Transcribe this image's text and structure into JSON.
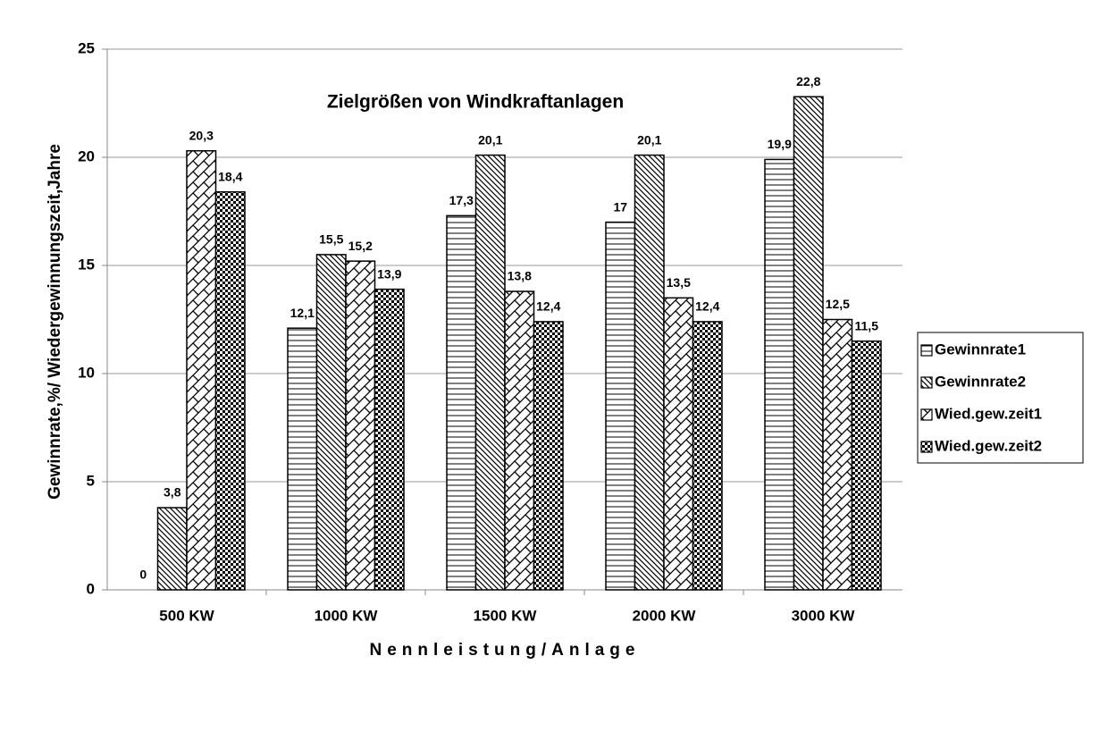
{
  "chart_data": {
    "type": "bar",
    "title": "Zielgrößen von Windkraftanlagen",
    "x_label": "Nennleistung/Anlage",
    "y_label": "Gewinnrate,%/ Wiedergewinnungszeit,Jahre",
    "categories": [
      "500 KW",
      "1000 KW",
      "1500 KW",
      "2000 KW",
      "3000 KW"
    ],
    "series": [
      {
        "name": "Gewinnrate1",
        "color": "#000000",
        "values": [
          0,
          12.1,
          17.3,
          17,
          19.9
        ],
        "value_labels": [
          "0",
          "12,1",
          "17,3",
          "17",
          "19,9"
        ]
      },
      {
        "name": "Gewinnrate2",
        "color": "#000000",
        "values": [
          3.8,
          15.5,
          20.1,
          20.1,
          22.8
        ],
        "value_labels": [
          "3,8",
          "15,5",
          "20,1",
          "20,1",
          "22,8"
        ]
      },
      {
        "name": "Wied.gew.zeit1",
        "color": "#000000",
        "values": [
          20.3,
          15.2,
          13.8,
          13.5,
          12.5
        ],
        "value_labels": [
          "20,3",
          "15,2",
          "13,8",
          "13,5",
          "12,5"
        ]
      },
      {
        "name": "Wied.gew.zeit2",
        "color": "#000000",
        "values": [
          18.4,
          13.9,
          12.4,
          12.4,
          11.5
        ],
        "value_labels": [
          "18,4",
          "13,9",
          "12,4",
          "12,4",
          "11,5"
        ]
      }
    ],
    "ylim": [
      0,
      25
    ],
    "yticks": [
      0,
      5,
      10,
      15,
      20,
      25
    ],
    "grid": true,
    "legend": "right"
  }
}
